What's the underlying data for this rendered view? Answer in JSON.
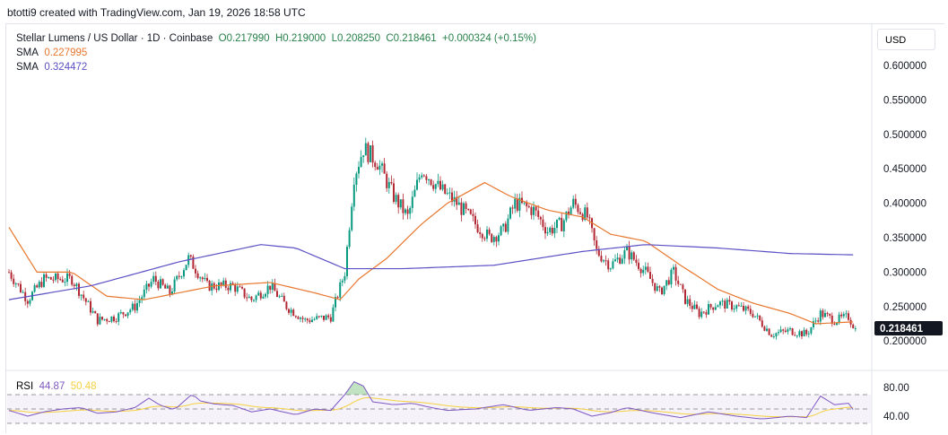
{
  "credit": "btotti9 created with TradingView.com, Jan 19, 2026 18:58 UTC",
  "legend": {
    "symbol": "Stellar Lumens / US Dollar · 1D · Coinbase",
    "open": "O0.217990",
    "high": "H0.219000",
    "low": "L0.208250",
    "close": "C0.218461",
    "change": "+0.000324 (+0.15%)",
    "sma1_label": "SMA",
    "sma1_value": "0.227995",
    "sma2_label": "SMA",
    "sma2_value": "0.324472"
  },
  "currency": "USD",
  "rsi_legend": {
    "label": "RSI",
    "value": "44.87",
    "signal": "50.48"
  },
  "colors": {
    "up": "#089981",
    "down": "#b22833",
    "sma1": "#e8772e",
    "sma2": "#5b4fc4",
    "rsi": "#7e57c2",
    "rsi_signal": "#f5d03f",
    "last_price_bg": "#131722"
  },
  "chart_data": [
    {
      "type": "candlestick",
      "ylim": [
        0.16,
        0.63
      ],
      "yticks": [
        "0.600000",
        "0.550000",
        "0.500000",
        "0.450000",
        "0.400000",
        "0.350000",
        "0.300000",
        "0.250000",
        "0.200000"
      ],
      "last_price": "0.218461",
      "close_path": [
        [
          0,
          0.3
        ],
        [
          8,
          0.26
        ],
        [
          15,
          0.29
        ],
        [
          27,
          0.29
        ],
        [
          38,
          0.23
        ],
        [
          46,
          0.235
        ],
        [
          54,
          0.25
        ],
        [
          62,
          0.29
        ],
        [
          69,
          0.27
        ],
        [
          77,
          0.32
        ],
        [
          85,
          0.28
        ],
        [
          96,
          0.28
        ],
        [
          104,
          0.26
        ],
        [
          112,
          0.28
        ],
        [
          119,
          0.25
        ],
        [
          127,
          0.23
        ],
        [
          138,
          0.235
        ],
        [
          144,
          0.3
        ],
        [
          148,
          0.44
        ],
        [
          152,
          0.48
        ],
        [
          158,
          0.46
        ],
        [
          165,
          0.41
        ],
        [
          171,
          0.38
        ],
        [
          177,
          0.45
        ],
        [
          185,
          0.42
        ],
        [
          192,
          0.4
        ],
        [
          200,
          0.37
        ],
        [
          206,
          0.35
        ],
        [
          212,
          0.36
        ],
        [
          217,
          0.4
        ],
        [
          225,
          0.39
        ],
        [
          231,
          0.36
        ],
        [
          237,
          0.37
        ],
        [
          242,
          0.4
        ],
        [
          248,
          0.38
        ],
        [
          252,
          0.33
        ],
        [
          258,
          0.31
        ],
        [
          265,
          0.33
        ],
        [
          273,
          0.3
        ],
        [
          279,
          0.27
        ],
        [
          285,
          0.3
        ],
        [
          290,
          0.26
        ],
        [
          296,
          0.24
        ],
        [
          304,
          0.255
        ],
        [
          312,
          0.25
        ],
        [
          319,
          0.24
        ],
        [
          327,
          0.21
        ],
        [
          335,
          0.215
        ],
        [
          342,
          0.21
        ],
        [
          348,
          0.24
        ],
        [
          354,
          0.23
        ],
        [
          360,
          0.235
        ],
        [
          363,
          0.218
        ]
      ],
      "sma_fast": [
        [
          0,
          0.365
        ],
        [
          12,
          0.3
        ],
        [
          27,
          0.3
        ],
        [
          42,
          0.265
        ],
        [
          58,
          0.26
        ],
        [
          73,
          0.27
        ],
        [
          88,
          0.28
        ],
        [
          112,
          0.285
        ],
        [
          131,
          0.27
        ],
        [
          142,
          0.26
        ],
        [
          150,
          0.29
        ],
        [
          162,
          0.32
        ],
        [
          177,
          0.37
        ],
        [
          188,
          0.4
        ],
        [
          204,
          0.43
        ],
        [
          215,
          0.41
        ],
        [
          231,
          0.39
        ],
        [
          246,
          0.38
        ],
        [
          258,
          0.355
        ],
        [
          273,
          0.345
        ],
        [
          288,
          0.31
        ],
        [
          304,
          0.275
        ],
        [
          319,
          0.255
        ],
        [
          335,
          0.24
        ],
        [
          346,
          0.225
        ],
        [
          363,
          0.228
        ]
      ],
      "sma_slow": [
        [
          0,
          0.26
        ],
        [
          35,
          0.28
        ],
        [
          73,
          0.315
        ],
        [
          108,
          0.34
        ],
        [
          123,
          0.335
        ],
        [
          144,
          0.305
        ],
        [
          169,
          0.305
        ],
        [
          208,
          0.31
        ],
        [
          246,
          0.33
        ],
        [
          273,
          0.34
        ],
        [
          304,
          0.335
        ],
        [
          335,
          0.327
        ],
        [
          363,
          0.325
        ]
      ]
    },
    {
      "type": "line",
      "name": "RSI",
      "ylim": [
        30,
        105
      ],
      "yticks": [
        "80.00",
        "40.00"
      ],
      "bands": [
        70,
        50,
        30
      ],
      "rsi": [
        [
          0,
          48
        ],
        [
          8,
          40
        ],
        [
          15,
          46
        ],
        [
          23,
          50
        ],
        [
          31,
          52
        ],
        [
          38,
          44
        ],
        [
          46,
          46
        ],
        [
          54,
          52
        ],
        [
          60,
          65
        ],
        [
          65,
          55
        ],
        [
          71,
          49
        ],
        [
          79,
          72
        ],
        [
          81,
          62
        ],
        [
          88,
          57
        ],
        [
          96,
          55
        ],
        [
          104,
          46
        ],
        [
          112,
          50
        ],
        [
          123,
          42
        ],
        [
          131,
          50
        ],
        [
          138,
          48
        ],
        [
          144,
          70
        ],
        [
          148,
          88
        ],
        [
          152,
          82
        ],
        [
          156,
          60
        ],
        [
          165,
          56
        ],
        [
          173,
          58
        ],
        [
          181,
          52
        ],
        [
          188,
          48
        ],
        [
          200,
          50
        ],
        [
          212,
          56
        ],
        [
          223,
          48
        ],
        [
          235,
          52
        ],
        [
          242,
          50
        ],
        [
          250,
          40
        ],
        [
          258,
          45
        ],
        [
          265,
          52
        ],
        [
          277,
          44
        ],
        [
          288,
          38
        ],
        [
          300,
          46
        ],
        [
          312,
          40
        ],
        [
          323,
          36
        ],
        [
          335,
          40
        ],
        [
          342,
          38
        ],
        [
          348,
          68
        ],
        [
          354,
          56
        ],
        [
          360,
          58
        ],
        [
          363,
          45
        ]
      ]
    }
  ]
}
